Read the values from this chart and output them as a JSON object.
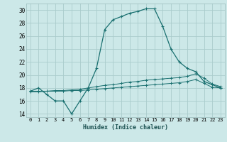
{
  "xlabel": "Humidex (Indice chaleur)",
  "bg_color": "#cce8e8",
  "grid_color": "#aacccc",
  "line_color": "#1a7070",
  "xlim": [
    -0.5,
    23.5
  ],
  "ylim": [
    13.5,
    31.0
  ],
  "yticks": [
    14,
    16,
    18,
    20,
    22,
    24,
    26,
    28,
    30
  ],
  "xticks": [
    0,
    1,
    2,
    3,
    4,
    5,
    6,
    7,
    8,
    9,
    10,
    11,
    12,
    13,
    14,
    15,
    16,
    17,
    18,
    19,
    20,
    21,
    22,
    23
  ],
  "line1_x": [
    0,
    1,
    2,
    3,
    4,
    5,
    6,
    7,
    8,
    9,
    10,
    11,
    12,
    13,
    14,
    15,
    16,
    17,
    18,
    19,
    20,
    21,
    22,
    23
  ],
  "line1_y": [
    17.5,
    18.0,
    17.0,
    16.0,
    16.0,
    14.0,
    16.0,
    18.0,
    21.0,
    27.0,
    28.5,
    29.0,
    29.5,
    29.8,
    30.2,
    30.2,
    27.5,
    24.0,
    22.0,
    21.0,
    20.5,
    19.0,
    18.5,
    18.0
  ],
  "line2_x": [
    0,
    1,
    2,
    3,
    4,
    5,
    6,
    7,
    8,
    9,
    10,
    11,
    12,
    13,
    14,
    15,
    16,
    17,
    18,
    19,
    20,
    21,
    22,
    23
  ],
  "line2_y": [
    17.5,
    17.5,
    17.5,
    17.6,
    17.6,
    17.7,
    17.8,
    18.0,
    18.2,
    18.4,
    18.5,
    18.7,
    18.9,
    19.0,
    19.2,
    19.3,
    19.4,
    19.5,
    19.6,
    19.8,
    20.2,
    19.5,
    18.6,
    18.2
  ],
  "line3_x": [
    0,
    1,
    2,
    3,
    4,
    5,
    6,
    7,
    8,
    9,
    10,
    11,
    12,
    13,
    14,
    15,
    16,
    17,
    18,
    19,
    20,
    21,
    22,
    23
  ],
  "line3_y": [
    17.4,
    17.4,
    17.5,
    17.5,
    17.5,
    17.6,
    17.6,
    17.7,
    17.8,
    17.9,
    18.0,
    18.1,
    18.2,
    18.3,
    18.4,
    18.5,
    18.6,
    18.7,
    18.8,
    19.0,
    19.3,
    18.7,
    18.1,
    18.0
  ]
}
